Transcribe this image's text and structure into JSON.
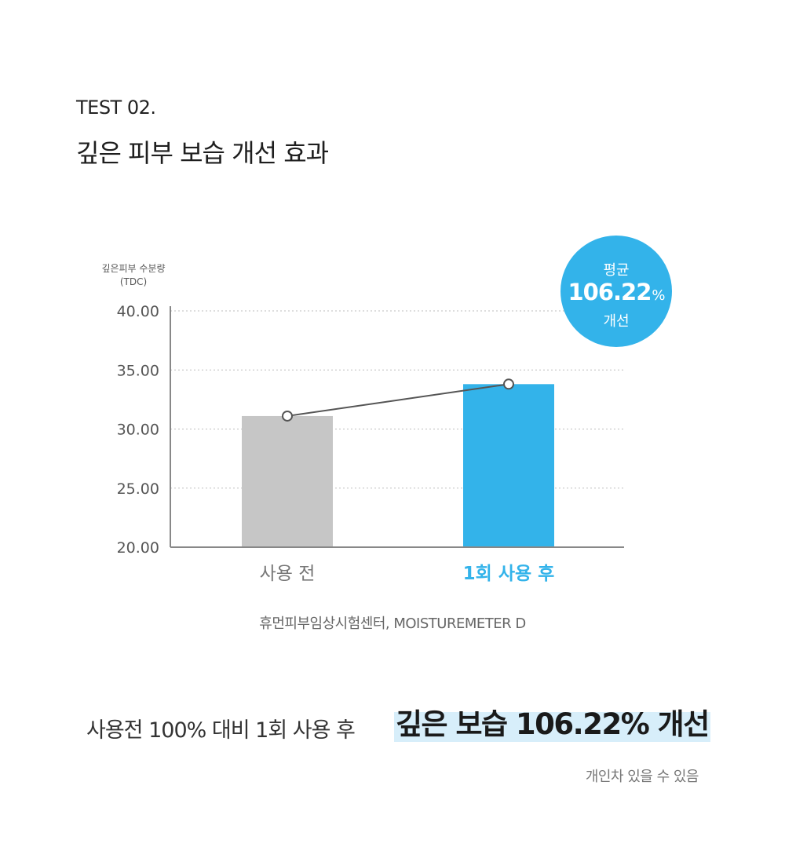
{
  "header": {
    "test_label": "TEST 02.",
    "title": "깊은 피부 보습 개선 효과"
  },
  "chart_data": {
    "type": "bar",
    "ylabel_line1": "깊은피부 수분량",
    "ylabel_line2": "(TDC)",
    "categories": [
      "사용 전",
      "1회 사용 후"
    ],
    "values": [
      31.1,
      33.8
    ],
    "bar_colors": [
      "#c6c6c6",
      "#33b3ea"
    ],
    "category_label_colors": [
      "#777777",
      "#33b3ea"
    ],
    "line_color": "#555555",
    "ylim": [
      20,
      40
    ],
    "yticks": [
      "20.00",
      "25.00",
      "30.00",
      "35.00",
      "40.00"
    ],
    "grid": true,
    "badge": {
      "line1": "평균",
      "value": "106.22",
      "unit": "%",
      "line3": "개선",
      "color": "#33b3ea"
    }
  },
  "source": "휴먼피부임상시험센터, MOISTUREMETER D",
  "summary": {
    "left": "사용전 100% 대비 1회 사용 후",
    "highlight": "깊은 보습 106.22% 개선"
  },
  "note": "개인차 있을 수 있음"
}
